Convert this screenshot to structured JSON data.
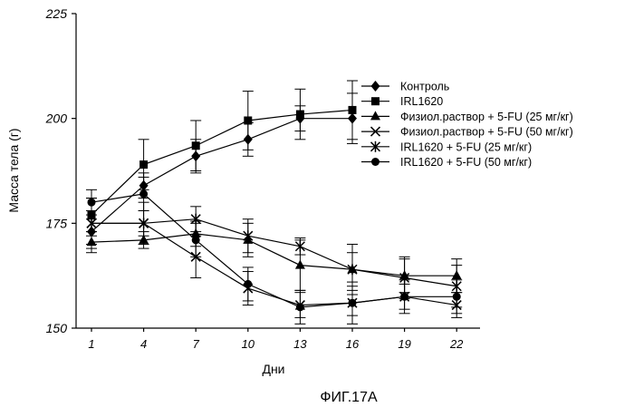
{
  "chart_data": {
    "type": "line",
    "title": "",
    "caption": "ФИГ.17А",
    "xlabel": "Дни",
    "ylabel": "Масса тела (г)",
    "x": [
      1,
      4,
      7,
      10,
      13,
      16,
      19,
      22
    ],
    "x_ticks": [
      "1",
      "4",
      "7",
      "10",
      "13",
      "16",
      "19",
      "22"
    ],
    "y_ticks": [
      "150",
      "175",
      "200",
      "225"
    ],
    "ylim": [
      150,
      225
    ],
    "grid": false,
    "legend_position": "right",
    "series": [
      {
        "name": "Контроль",
        "marker": "diamond",
        "x": [
          1,
          4,
          7,
          10,
          13,
          16
        ],
        "values": [
          173,
          184,
          191,
          195,
          200,
          200
        ],
        "errors": [
          3,
          3,
          4,
          4,
          3,
          6
        ]
      },
      {
        "name": "IRL1620",
        "marker": "square",
        "x": [
          1,
          4,
          7,
          10,
          13,
          16
        ],
        "values": [
          177,
          189,
          193.5,
          199.5,
          201,
          202
        ],
        "errors": [
          4,
          6,
          6,
          7,
          6,
          7
        ]
      },
      {
        "name": "Физиол.раствор + 5-FU (25 мг/кг)",
        "marker": "triangle",
        "x": [
          1,
          4,
          7,
          10,
          13,
          16,
          19,
          22
        ],
        "values": [
          170.5,
          171,
          172.5,
          171,
          165,
          164,
          162.5,
          162.5
        ],
        "errors": [
          2.5,
          2,
          3,
          4,
          6,
          4,
          4,
          4
        ]
      },
      {
        "name": "Физиол.раствор + 5-FU (50 мг/кг)",
        "marker": "x",
        "x": [
          1,
          4,
          7,
          10,
          13,
          16,
          19,
          22
        ],
        "values": [
          175,
          175,
          167,
          159.5,
          155.5,
          156,
          157.5,
          155.5
        ],
        "errors": [
          3,
          3,
          5,
          4,
          3,
          3,
          3,
          3
        ]
      },
      {
        "name": "IRL1620 + 5-FU (25 мг/кг)",
        "marker": "star",
        "x": [
          1,
          4,
          7,
          10,
          13,
          16,
          19,
          22
        ],
        "values": [
          175,
          175,
          176,
          172,
          169.5,
          164,
          162,
          160
        ],
        "errors": [
          6,
          5,
          3,
          4,
          2,
          6,
          5,
          5
        ]
      },
      {
        "name": "IRL1620 + 5-FU (50 мг/кг)",
        "marker": "circle",
        "x": [
          1,
          4,
          7,
          10,
          13,
          16,
          19,
          22
        ],
        "values": [
          180,
          182,
          171,
          160.5,
          155,
          156,
          157.5,
          157.5
        ],
        "errors": [
          3,
          4,
          4,
          4,
          4,
          5,
          4,
          4
        ]
      }
    ]
  }
}
